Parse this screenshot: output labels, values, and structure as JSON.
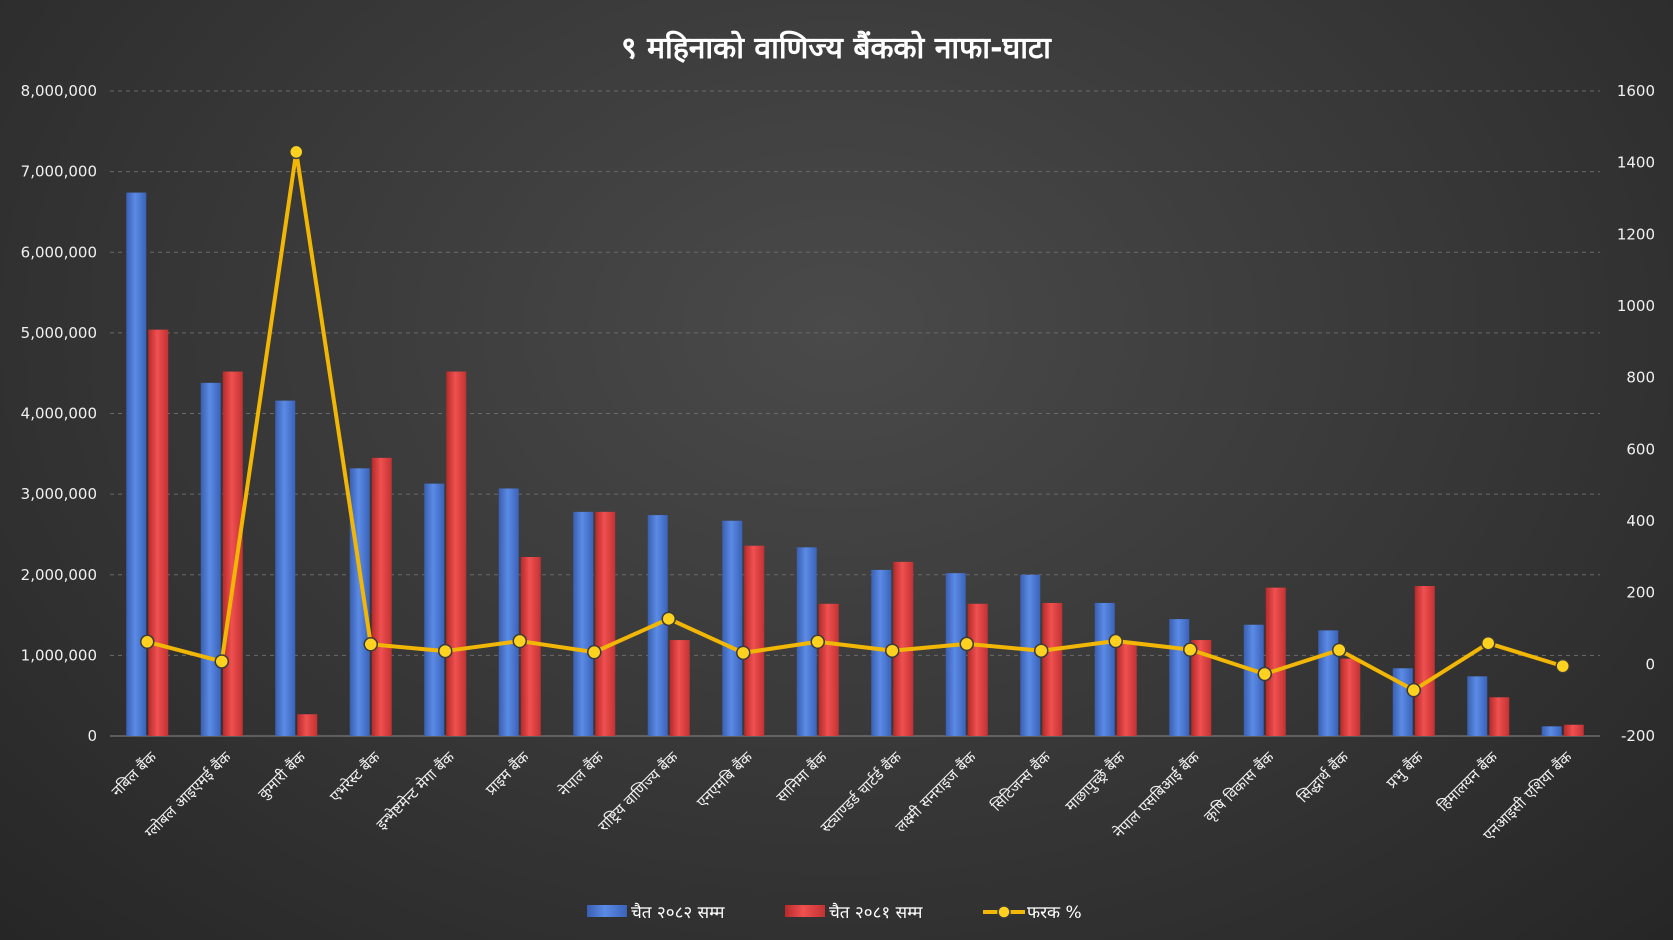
{
  "chart_data": {
    "type": "bar",
    "title": "९ महिनाको वाणिज्य बैंकको नाफा-घाटा",
    "categories": [
      "नबिल बैंक",
      "ग्लोबल आइएमई बैंक",
      "कुमारी बैंक",
      "एभरेस्ट बैंक",
      "इन्भेष्टमेन्ट मेगा बैंक",
      "प्राइम बैंक",
      "नेपाल बैंक",
      "राष्ट्रिय वाणिज्य बैंक",
      "एनएमबि बैंक",
      "सानिमा बैंक",
      "स्ट्याण्डर्ड चार्टर्ड बैंक",
      "लक्ष्मी सनराइज बैंक",
      "सिटिजन्स बैंक",
      "माछापुच्छ्रे बैंक",
      "नेपाल एसबिआई बैंक",
      "कृषि विकास बैंक",
      "सिद्धार्थ बैंक",
      "प्रभु बैंक",
      "हिमालयन बैंक",
      "एनआइसी एशिया बैंक"
    ],
    "series": [
      {
        "name": "चैत २०८२ सम्म",
        "axis": "left",
        "color": "#4472c4",
        "values": [
          6740000,
          4380000,
          4160000,
          3320000,
          3130000,
          3070000,
          2780000,
          2740000,
          2670000,
          2340000,
          2060000,
          2020000,
          2000000,
          1650000,
          1450000,
          1380000,
          1310000,
          840000,
          740000,
          120000
        ]
      },
      {
        "name": "चैत २०८१ सम्म",
        "axis": "left",
        "color": "#e03c3c",
        "values": [
          5040000,
          4520000,
          270000,
          3450000,
          4520000,
          2220000,
          2780000,
          1190000,
          2360000,
          1640000,
          2160000,
          1640000,
          1650000,
          1170000,
          1190000,
          1840000,
          960000,
          1860000,
          480000,
          140000
        ]
      },
      {
        "name": "फरक %",
        "axis": "right",
        "color": "#f2b705",
        "values": [
          63,
          8,
          1430,
          56,
          37,
          65,
          34,
          127,
          32,
          63,
          38,
          57,
          38,
          65,
          41,
          -27,
          40,
          -72,
          59,
          -5
        ]
      }
    ],
    "left_axis": {
      "min": 0,
      "max": 8000000,
      "step": 1000000,
      "labels": [
        "0",
        "1,000,000",
        "2,000,000",
        "3,000,000",
        "4,000,000",
        "5,000,000",
        "6,000,000",
        "7,000,000",
        "8,000,000"
      ]
    },
    "right_axis": {
      "min": -200,
      "max": 1600,
      "step": 200,
      "labels": [
        "-200",
        "0",
        "200",
        "400",
        "600",
        "800",
        "1000",
        "1200",
        "1400",
        "1600"
      ]
    },
    "legend_position": "bottom",
    "grid": true
  }
}
